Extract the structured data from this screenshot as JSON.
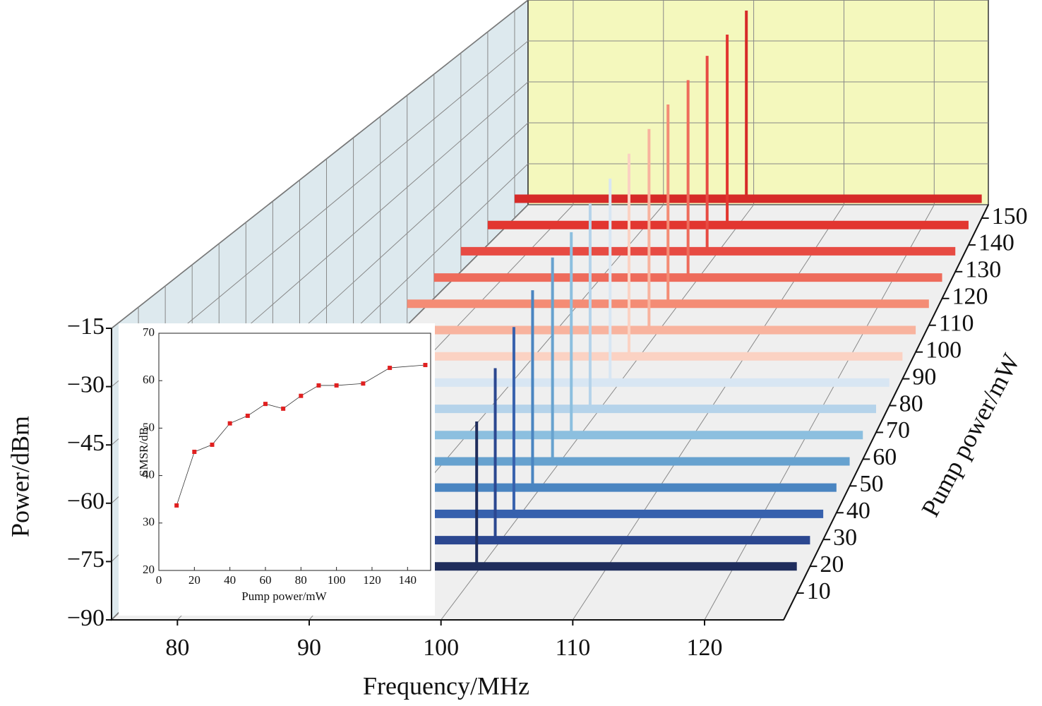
{
  "chart_data": [
    {
      "type": "waterfall3d",
      "xlabel": "Frequency/MHz",
      "ylabel": "Power/dBm",
      "zlabel": "Pump power/mW",
      "xlim": [
        75,
        126
      ],
      "xticks": [
        80,
        90,
        100,
        110,
        120
      ],
      "ylim": [
        -90,
        -15
      ],
      "yticks": [
        {
          "value": -90,
          "label": "−90"
        },
        {
          "value": -75,
          "label": "−75"
        },
        {
          "value": -60,
          "label": "−60"
        },
        {
          "value": -45,
          "label": "−45"
        },
        {
          "value": -30,
          "label": "−30"
        },
        {
          "value": -15,
          "label": "−15"
        }
      ],
      "zlim": [
        0,
        155
      ],
      "zticks": [
        10,
        20,
        30,
        40,
        50,
        60,
        70,
        80,
        90,
        100,
        110,
        120,
        130,
        140,
        150
      ],
      "series": [
        {
          "pump_power": 10,
          "color": "#1f2d5c",
          "peak_frequency": 101.2,
          "peak_power": -45,
          "floor_power": -83
        },
        {
          "pump_power": 20,
          "color": "#2b4790",
          "peak_frequency": 101.1,
          "peak_power": -37,
          "floor_power": -83
        },
        {
          "pump_power": 30,
          "color": "#3761ad",
          "peak_frequency": 101.0,
          "peak_power": -32,
          "floor_power": -83
        },
        {
          "pump_power": 40,
          "color": "#4a85c1",
          "peak_frequency": 100.9,
          "peak_power": -28,
          "floor_power": -83
        },
        {
          "pump_power": 50,
          "color": "#67a2cf",
          "peak_frequency": 100.9,
          "peak_power": -25,
          "floor_power": -83
        },
        {
          "pump_power": 60,
          "color": "#8cbfdf",
          "peak_frequency": 100.8,
          "peak_power": -24,
          "floor_power": -83
        },
        {
          "pump_power": 70,
          "color": "#b5d3ea",
          "peak_frequency": 100.7,
          "peak_power": -22,
          "floor_power": -83
        },
        {
          "pump_power": 80,
          "color": "#d8e6f3",
          "peak_frequency": 100.7,
          "peak_power": -21,
          "floor_power": -83
        },
        {
          "pump_power": 90,
          "color": "#fbd2c3",
          "peak_frequency": 100.6,
          "peak_power": -20,
          "floor_power": -83
        },
        {
          "pump_power": 100,
          "color": "#f8b39e",
          "peak_frequency": 100.6,
          "peak_power": -19,
          "floor_power": -83
        },
        {
          "pump_power": 110,
          "color": "#f48c75",
          "peak_frequency": 100.5,
          "peak_power": -18,
          "floor_power": -83
        },
        {
          "pump_power": 120,
          "color": "#ee6b5b",
          "peak_frequency": 100.5,
          "peak_power": -17,
          "floor_power": -83
        },
        {
          "pump_power": 130,
          "color": "#e74b43",
          "peak_frequency": 100.4,
          "peak_power": -16,
          "floor_power": -83
        },
        {
          "pump_power": 140,
          "color": "#e23630",
          "peak_frequency": 100.4,
          "peak_power": -16,
          "floor_power": -83
        },
        {
          "pump_power": 150,
          "color": "#d62a28",
          "peak_frequency": 100.3,
          "peak_power": -15,
          "floor_power": -83
        }
      ]
    },
    {
      "type": "line",
      "xlabel": "Pump power/mW",
      "ylabel": "SMSR/dB",
      "xlim": [
        0,
        153
      ],
      "xticks": [
        0,
        20,
        40,
        60,
        80,
        100,
        120,
        140
      ],
      "ylim": [
        20,
        70
      ],
      "yticks": [
        20,
        30,
        40,
        50,
        60,
        70
      ],
      "x": [
        10,
        20,
        30,
        40,
        50,
        60,
        70,
        80,
        90,
        100,
        115,
        130,
        150
      ],
      "series": [
        {
          "color": "#e02020",
          "values": [
            33.7,
            45.0,
            46.5,
            51.0,
            52.6,
            55.1,
            54.1,
            56.8,
            59.0,
            59.0,
            59.4,
            62.7,
            63.3
          ]
        }
      ]
    }
  ]
}
